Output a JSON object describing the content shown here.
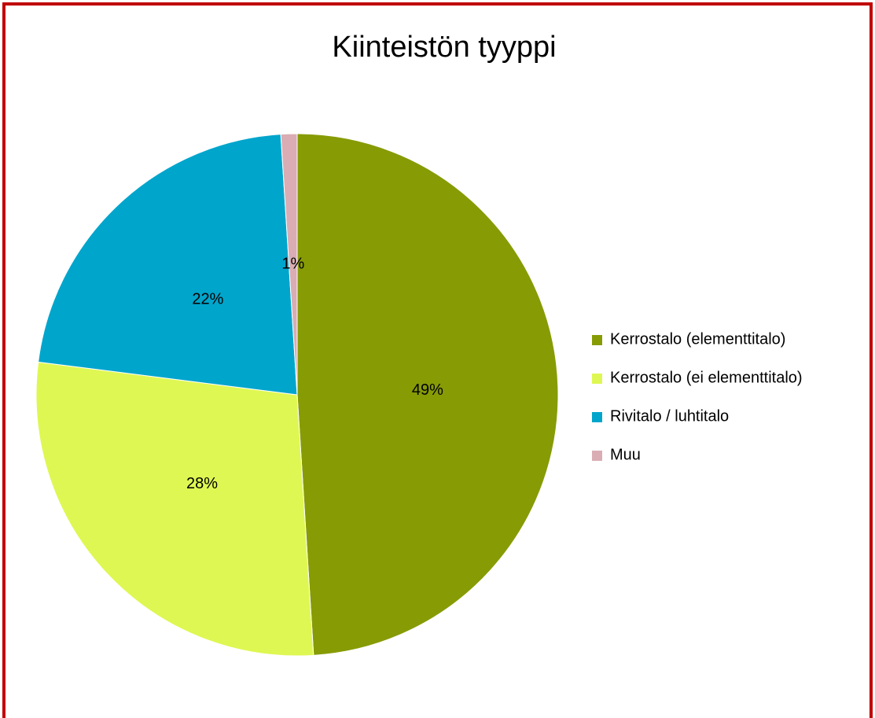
{
  "chart_data": {
    "type": "pie",
    "title": "Kiinteistön tyyppi",
    "categories": [
      "Kerrostalo (elementtitalo)",
      "Kerrostalo (ei elementtitalo)",
      "Rivitalo / luhtitalo",
      "Muu"
    ],
    "values": [
      49,
      28,
      22,
      1
    ],
    "value_labels": [
      "49%",
      "28%",
      "22%",
      "1%"
    ],
    "colors": [
      "#879b05",
      "#dff752",
      "#00a5cc",
      "#d9adb3"
    ],
    "legend": "right"
  }
}
